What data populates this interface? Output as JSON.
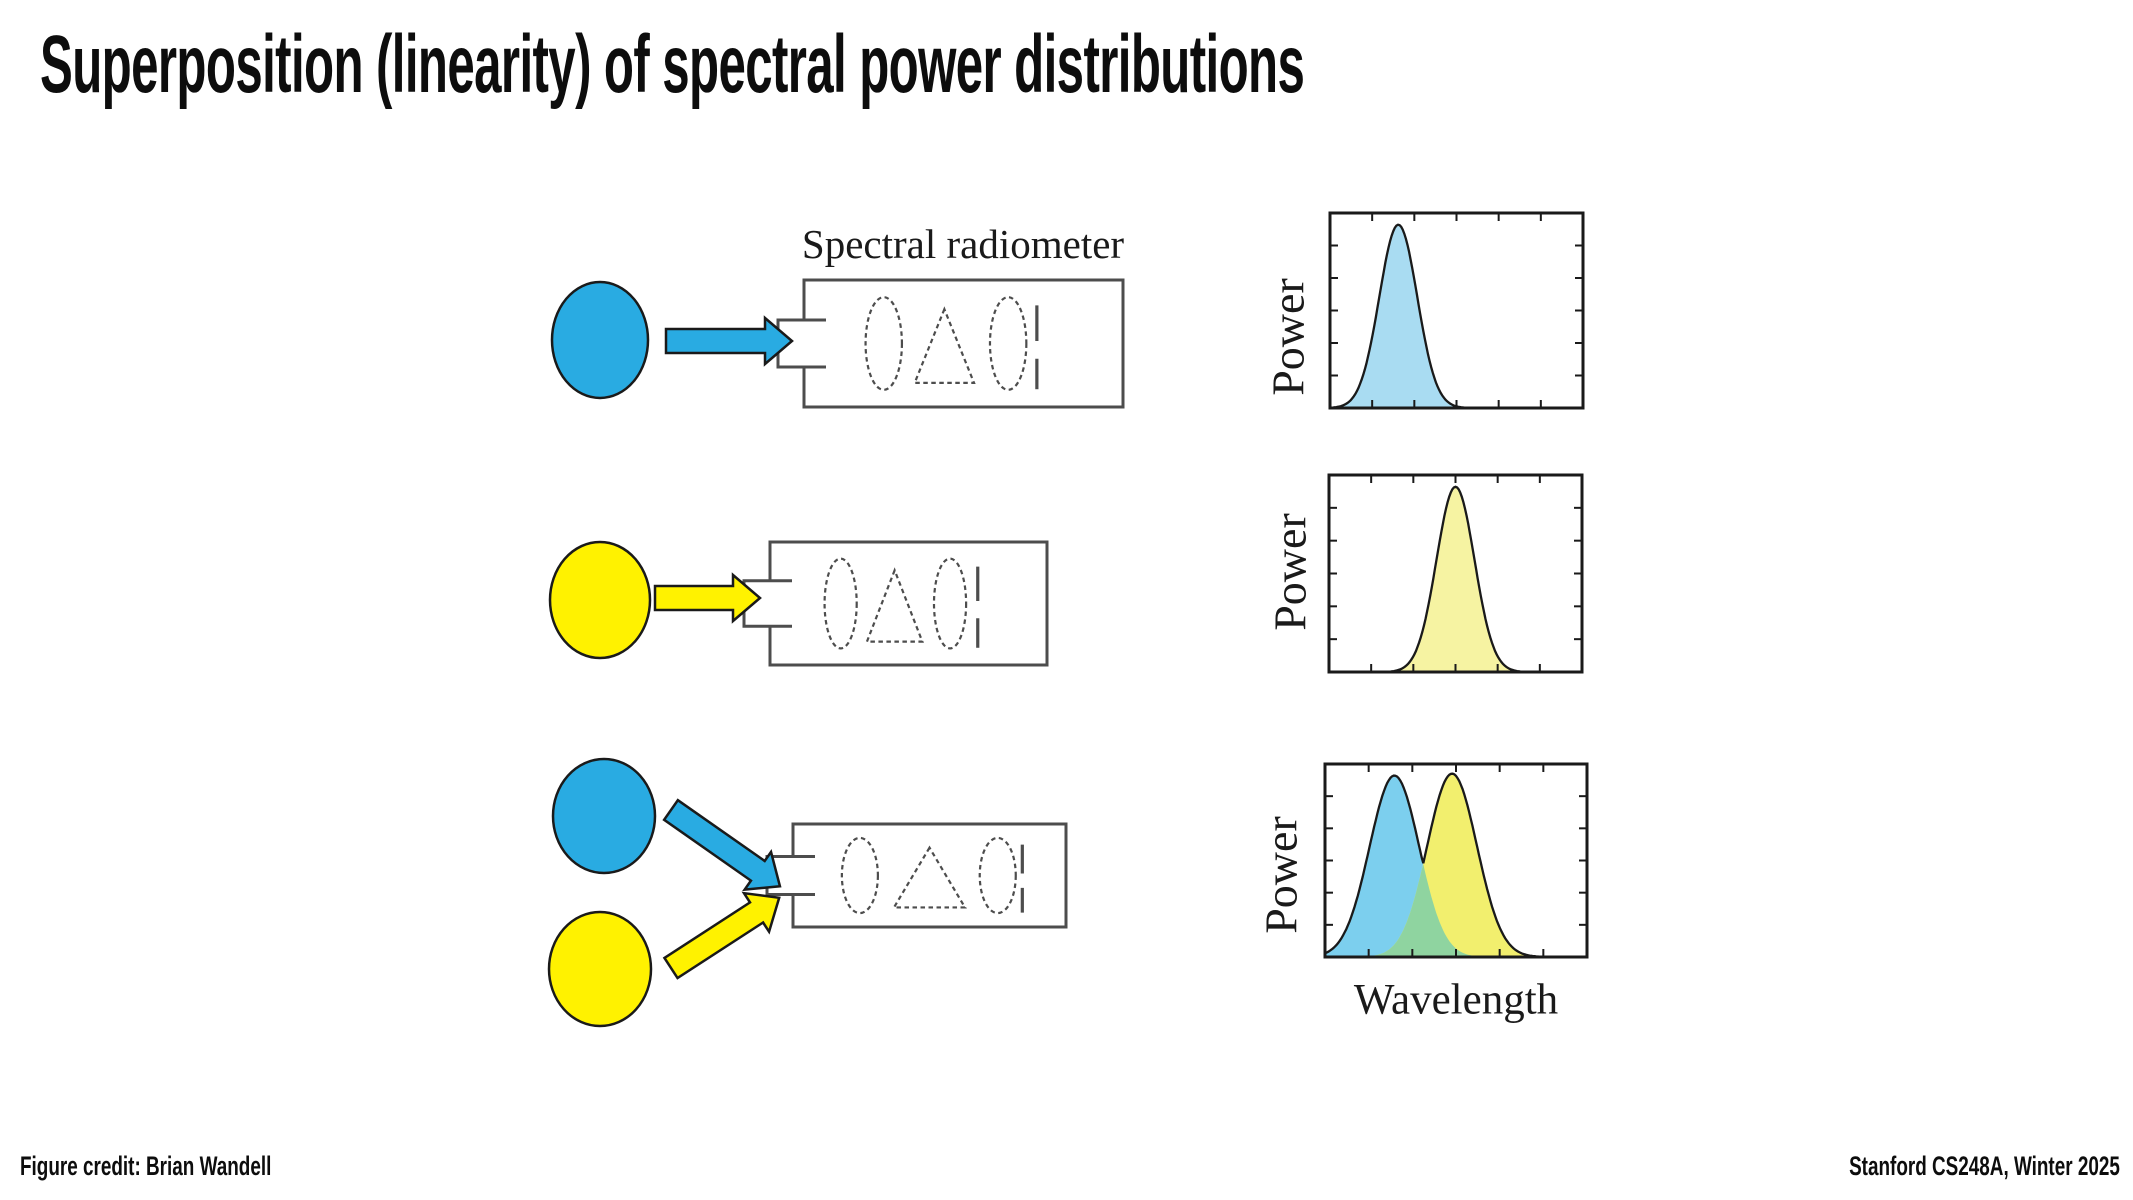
{
  "slide": {
    "title": "Superposition (linearity) of spectral power distributions",
    "footer_left": "Figure credit: Brian Wandell",
    "footer_right": "Stanford CS248A, Winter 2025"
  },
  "figure": {
    "radiometer_label": "Spectral radiometer",
    "colors": {
      "blue_source": "#29abe2",
      "yellow_source": "#fff200",
      "outline": "#1a1a1a",
      "device_stroke": "#4d4d4d"
    }
  },
  "chart_data": [
    {
      "type": "area",
      "id": "blue-spd",
      "ylabel": "Power",
      "xlabel": "",
      "x_range": [
        0,
        1
      ],
      "y_range": [
        0,
        1
      ],
      "axis_ticks": "unlabeled inward ticks on all four sides",
      "grid": false,
      "series": [
        {
          "name": "blue light SPD",
          "shape": "gaussian",
          "peak_x": 0.27,
          "sigma": 0.075,
          "peak_y": 0.94,
          "fill": "#a9dcf2"
        }
      ]
    },
    {
      "type": "area",
      "id": "yellow-spd",
      "ylabel": "Power",
      "xlabel": "",
      "x_range": [
        0,
        1
      ],
      "y_range": [
        0,
        1
      ],
      "axis_ticks": "unlabeled inward ticks on all four sides",
      "grid": false,
      "series": [
        {
          "name": "yellow light SPD",
          "shape": "gaussian",
          "peak_x": 0.5,
          "sigma": 0.075,
          "peak_y": 0.94,
          "fill": "#f6f3a2"
        }
      ]
    },
    {
      "type": "area",
      "id": "combined-spd",
      "ylabel": "Power",
      "xlabel": "Wavelength",
      "x_range": [
        0,
        1
      ],
      "y_range": [
        0,
        1
      ],
      "axis_ticks": "unlabeled inward ticks on all four sides",
      "grid": false,
      "series": [
        {
          "name": "blue light SPD",
          "shape": "gaussian",
          "peak_x": 0.265,
          "sigma": 0.095,
          "peak_y": 0.94,
          "fill": "#7ccfee"
        },
        {
          "name": "yellow light SPD",
          "shape": "gaussian",
          "peak_x": 0.485,
          "sigma": 0.095,
          "peak_y": 0.95,
          "fill": "#f2ef6e"
        }
      ],
      "overlap_fill": "#8fd4a0"
    }
  ]
}
